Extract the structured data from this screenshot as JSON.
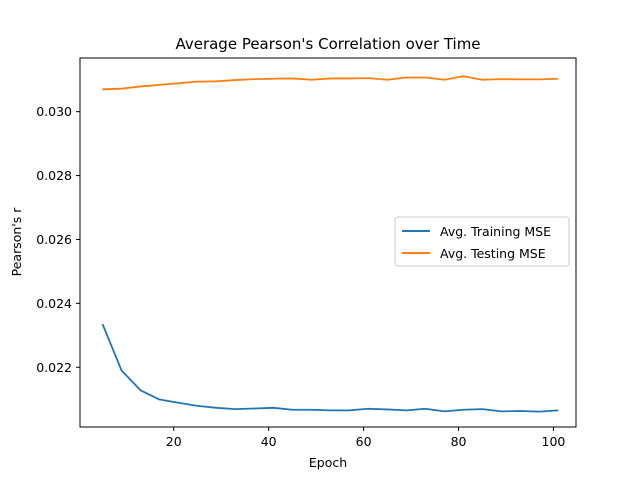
{
  "chart_data": {
    "type": "line",
    "title": "Average Pearson's Correlation over Time",
    "xlabel": "Epoch",
    "ylabel": "Pearson's r",
    "xlim": [
      0.25,
      104.75
    ],
    "ylim": [
      0.02013,
      0.03168
    ],
    "xticks": [
      20,
      40,
      60,
      80,
      100
    ],
    "yticks": [
      0.022,
      0.024,
      0.026,
      0.028,
      0.03
    ],
    "ytick_labels": [
      "0.022",
      "0.024",
      "0.026",
      "0.028",
      "0.030"
    ],
    "grid": false,
    "legend_position": "center-right",
    "x": [
      5,
      9,
      13,
      17,
      21,
      25,
      29,
      33,
      37,
      41,
      45,
      49,
      53,
      57,
      61,
      65,
      69,
      73,
      77,
      81,
      85,
      89,
      93,
      97,
      101
    ],
    "series": [
      {
        "name": "Avg. Training MSE",
        "color": "#1f77b4",
        "values": [
          0.02335,
          0.0219,
          0.02128,
          0.02099,
          0.02089,
          0.02079,
          0.02073,
          0.02069,
          0.02071,
          0.02073,
          0.02067,
          0.02067,
          0.02065,
          0.02065,
          0.0207,
          0.02068,
          0.02065,
          0.0207,
          0.02062,
          0.02067,
          0.02069,
          0.02062,
          0.02063,
          0.02061,
          0.02065
        ]
      },
      {
        "name": "Avg. Testing MSE",
        "color": "#ff7f0e",
        "values": [
          0.0307,
          0.03072,
          0.03079,
          0.03084,
          0.03089,
          0.03094,
          0.03095,
          0.03099,
          0.03102,
          0.03103,
          0.03104,
          0.031,
          0.03104,
          0.03104,
          0.03105,
          0.031,
          0.03107,
          0.03107,
          0.031,
          0.03111,
          0.031,
          0.03102,
          0.03101,
          0.03101,
          0.03103
        ]
      }
    ]
  }
}
